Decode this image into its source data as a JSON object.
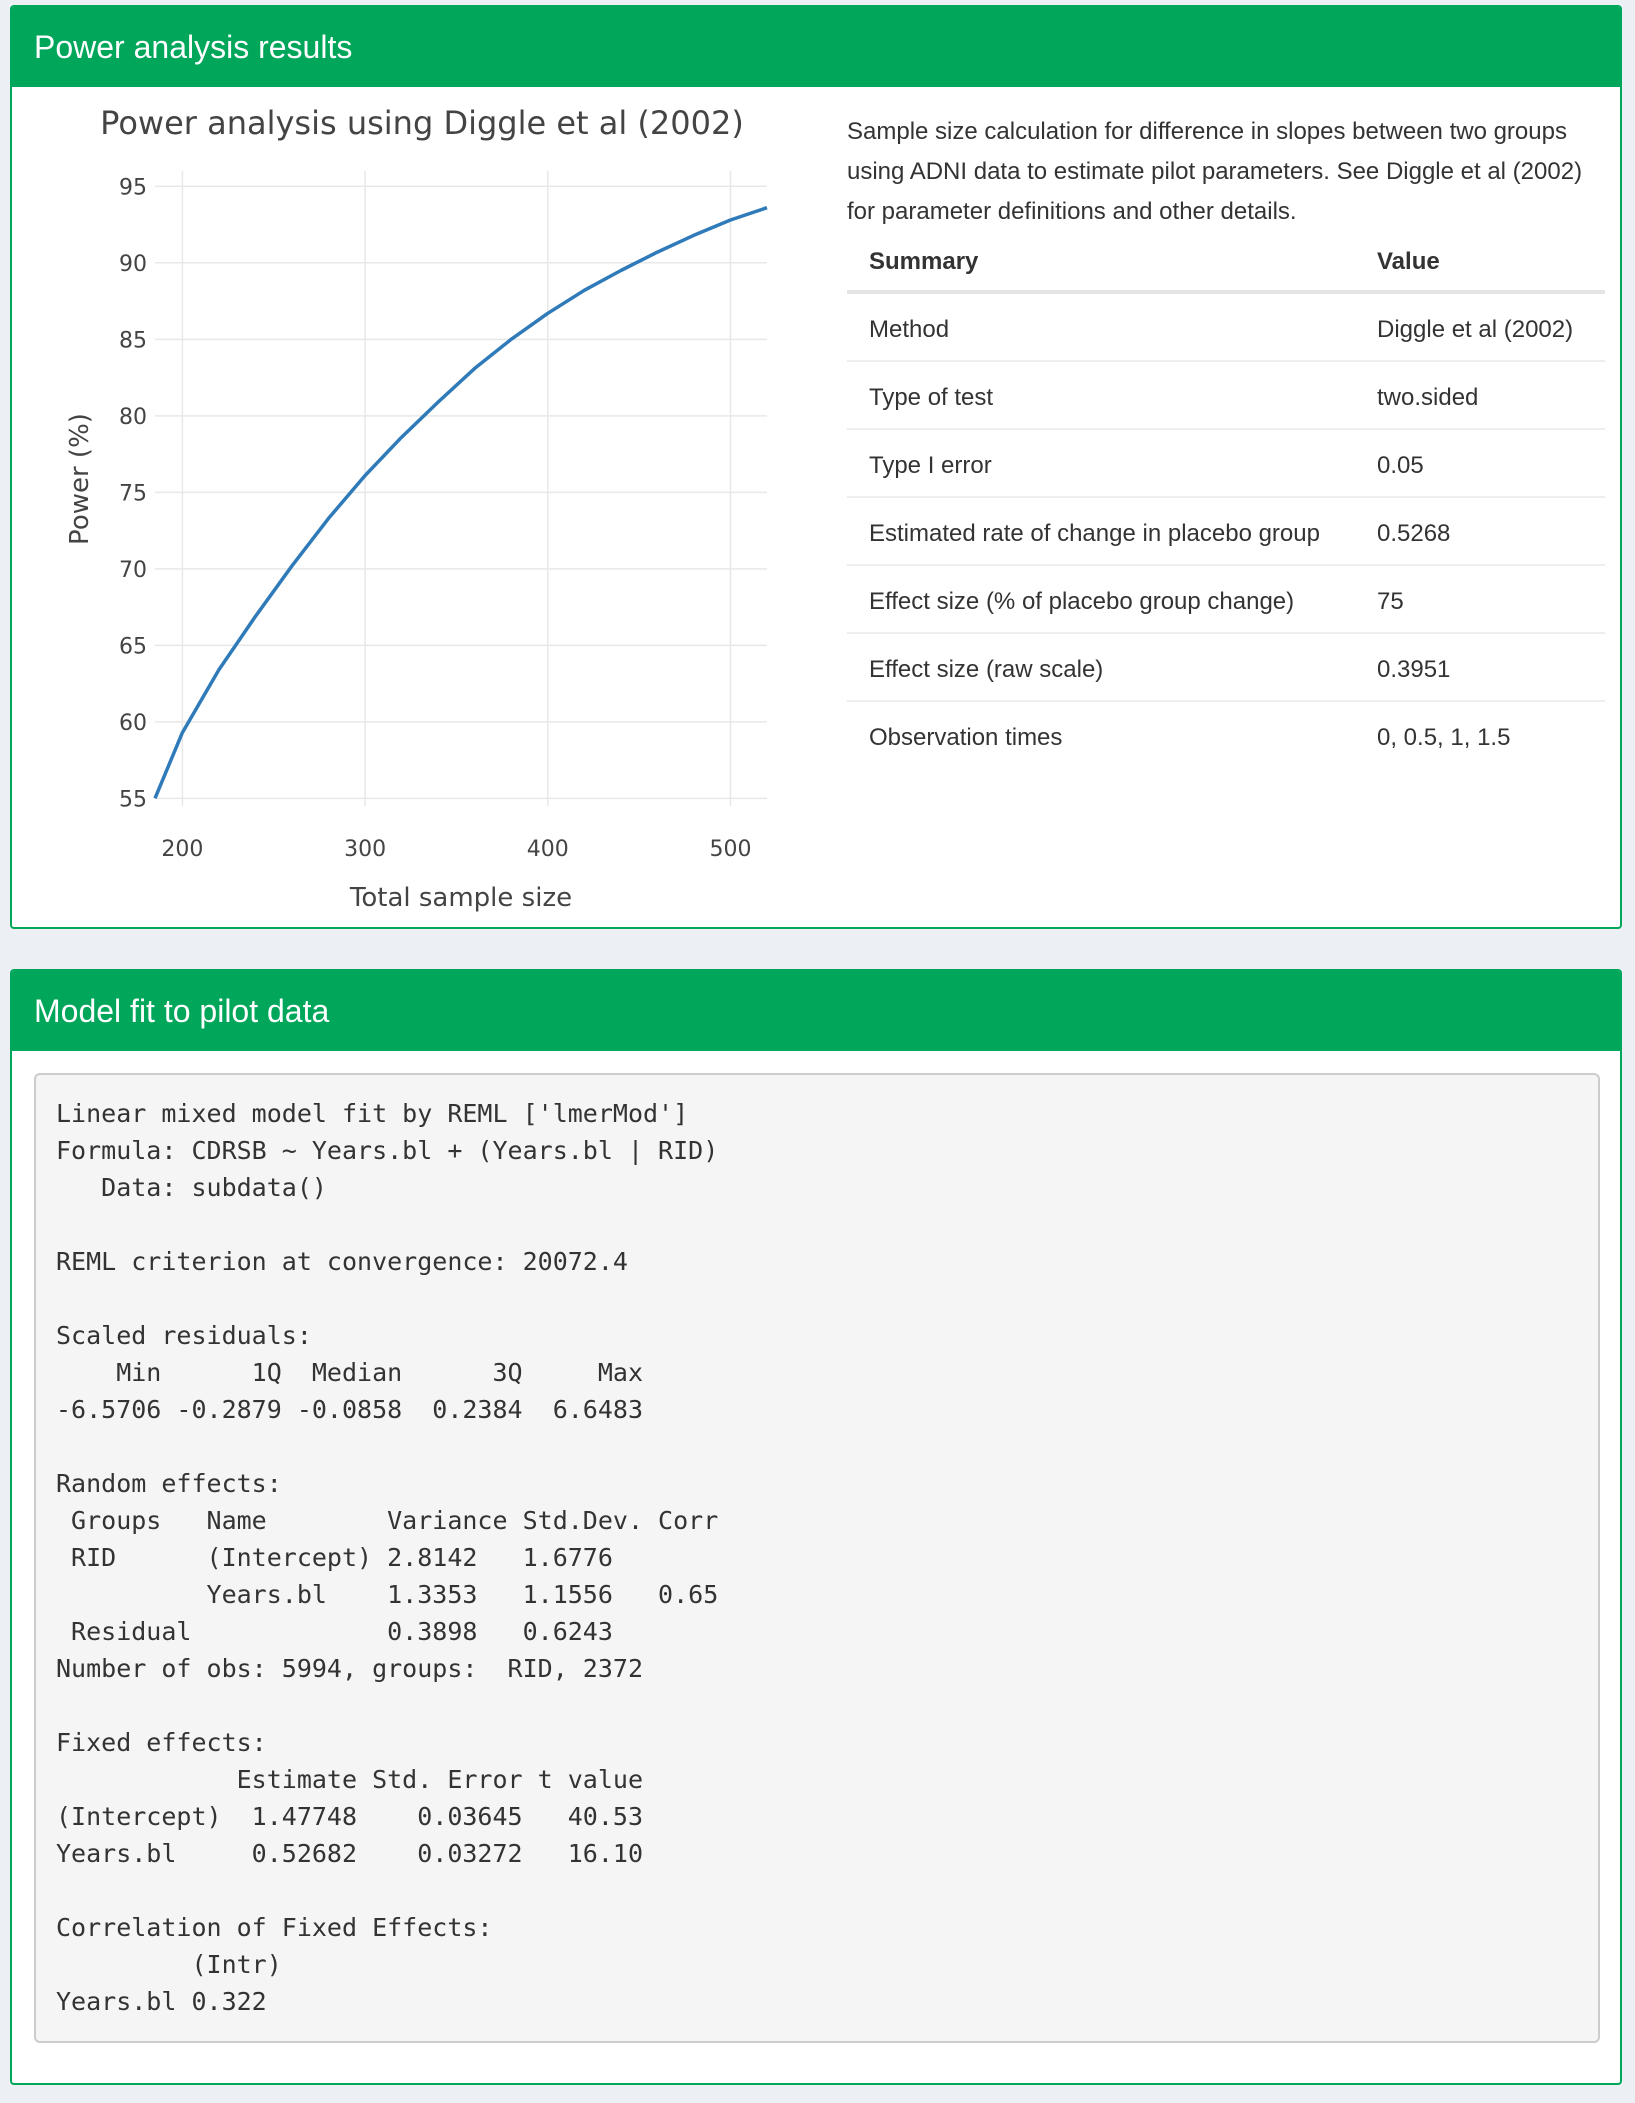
{
  "power_panel": {
    "title": "Power analysis results",
    "description": "Sample size calculation for difference in slopes between two groups using ADNI data to estimate pilot parameters. See Diggle et al (2002) for parameter definitions and other details.",
    "table": {
      "headers": [
        "Summary",
        "Value"
      ],
      "rows": [
        {
          "summary": "Method",
          "value": "Diggle et al (2002)"
        },
        {
          "summary": "Type of test",
          "value": "two.sided"
        },
        {
          "summary": "Type I error",
          "value": "0.05"
        },
        {
          "summary": "Estimated rate of change in placebo group",
          "value": "0.5268"
        },
        {
          "summary": "Effect size (% of placebo group change)",
          "value": "75"
        },
        {
          "summary": "Effect size (raw scale)",
          "value": "0.3951"
        },
        {
          "summary": "Observation times",
          "value": "0, 0.5, 1, 1.5"
        }
      ]
    }
  },
  "chart_data": {
    "type": "line",
    "title": "Power analysis using Diggle et al (2002)",
    "xlabel": "Total sample size",
    "ylabel": "Power (%)",
    "xlim": [
      185,
      520
    ],
    "ylim": [
      54.5,
      96
    ],
    "xticks": [
      200,
      300,
      400,
      500
    ],
    "yticks": [
      55,
      60,
      65,
      70,
      75,
      80,
      85,
      90,
      95
    ],
    "grid": true,
    "line_color": "#2f7ab9",
    "series": [
      {
        "x": [
          185,
          200,
          220,
          240,
          260,
          280,
          300,
          320,
          340,
          360,
          380,
          400,
          420,
          440,
          460,
          480,
          500,
          520
        ],
        "values": [
          55,
          59.3,
          63.4,
          66.9,
          70.2,
          73.3,
          76.1,
          78.6,
          80.9,
          83.1,
          85.0,
          86.7,
          88.2,
          89.5,
          90.7,
          91.8,
          92.8,
          93.6
        ]
      }
    ]
  },
  "model_panel": {
    "title": "Model fit to pilot data",
    "output": "Linear mixed model fit by REML ['lmerMod']\nFormula: CDRSB ~ Years.bl + (Years.bl | RID)\n   Data: subdata()\n\nREML criterion at convergence: 20072.4\n\nScaled residuals:\n    Min      1Q  Median      3Q     Max\n-6.5706 -0.2879 -0.0858  0.2384  6.6483\n\nRandom effects:\n Groups   Name        Variance Std.Dev. Corr\n RID      (Intercept) 2.8142   1.6776\n          Years.bl    1.3353   1.1556   0.65\n Residual             0.3898   0.6243\nNumber of obs: 5994, groups:  RID, 2372\n\nFixed effects:\n            Estimate Std. Error t value\n(Intercept)  1.47748    0.03645   40.53\nYears.bl     0.52682    0.03272   16.10\n\nCorrelation of Fixed Effects:\n         (Intr)\nYears.bl 0.322"
  }
}
